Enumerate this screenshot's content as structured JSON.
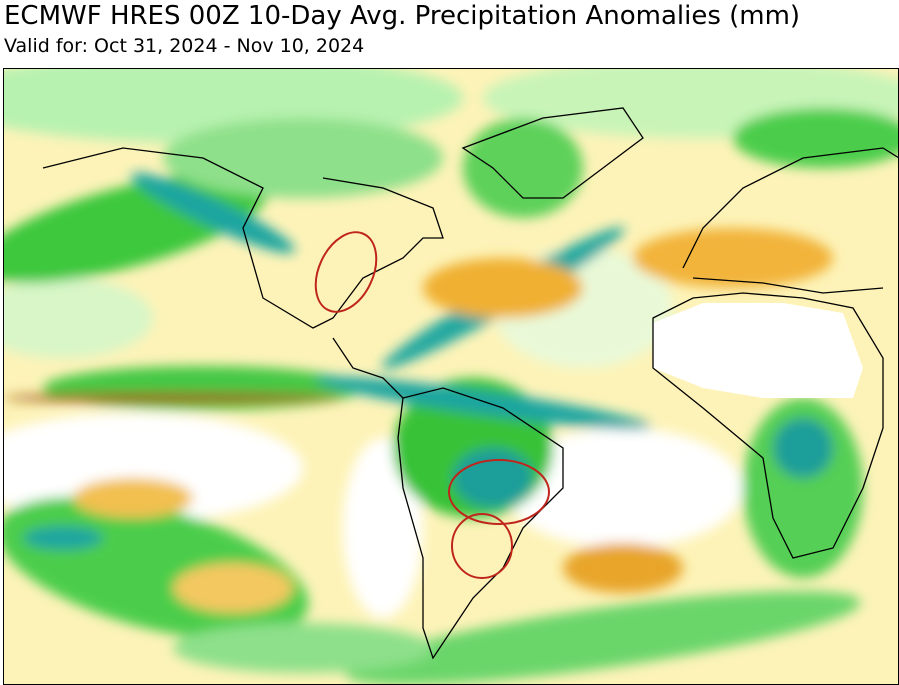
{
  "header": {
    "title": "ECMWF HRES 00Z 10-Day Avg. Precipitation Anomalies (mm)",
    "subtitle": "Valid for: Oct 31, 2024 - Nov 10, 2024"
  }
}
